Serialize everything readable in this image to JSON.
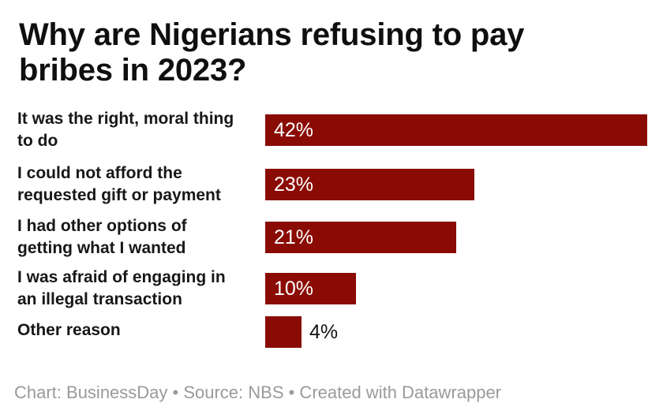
{
  "header": {
    "title": "Why are Nigerians refusing to pay\nbribes in 2023?"
  },
  "rows": [
    {
      "label": "It was the right, moral thing\nto do",
      "value": 42,
      "value_label": "42%"
    },
    {
      "label": "I could not afford the\nrequested gift or payment",
      "value": 23,
      "value_label": "23%"
    },
    {
      "label": "I had other options of\ngetting what I wanted",
      "value": 21,
      "value_label": "21%"
    },
    {
      "label": "I was afraid of engaging in\nan illegal transaction",
      "value": 10,
      "value_label": "10%"
    },
    {
      "label": "Other reason",
      "value": 4,
      "value_label": "4%"
    }
  ],
  "footer": {
    "text": "Chart: BusinessDay • Source: NBS • Created with Datawrapper"
  },
  "colors": {
    "background": "#ffffff",
    "bar": "#8a0b04",
    "bar_label_inside": "#ffffff",
    "bar_label_outside": "#141414",
    "title": "#0f0f0f",
    "category_label": "#171717",
    "footer": "#9a9a9a"
  },
  "chart_data": {
    "type": "bar",
    "orientation": "horizontal",
    "title": "Why are Nigerians refusing to pay bribes in 2023?",
    "categories": [
      "It was the right, moral thing to do",
      "I could not afford the requested gift or payment",
      "I had other options of getting what I wanted",
      "I was afraid of engaging in an illegal transaction",
      "Other reason"
    ],
    "values": [
      42,
      23,
      21,
      10,
      4
    ],
    "value_suffix": "%",
    "xlabel": "",
    "ylabel": "",
    "xlim": [
      0,
      42
    ],
    "grid": false,
    "legend": false,
    "bar_color": "#8a0b04",
    "value_labels": "inside bar, white; outside dark for smallest bar",
    "attribution": "Chart: BusinessDay • Source: NBS • Created with Datawrapper"
  }
}
